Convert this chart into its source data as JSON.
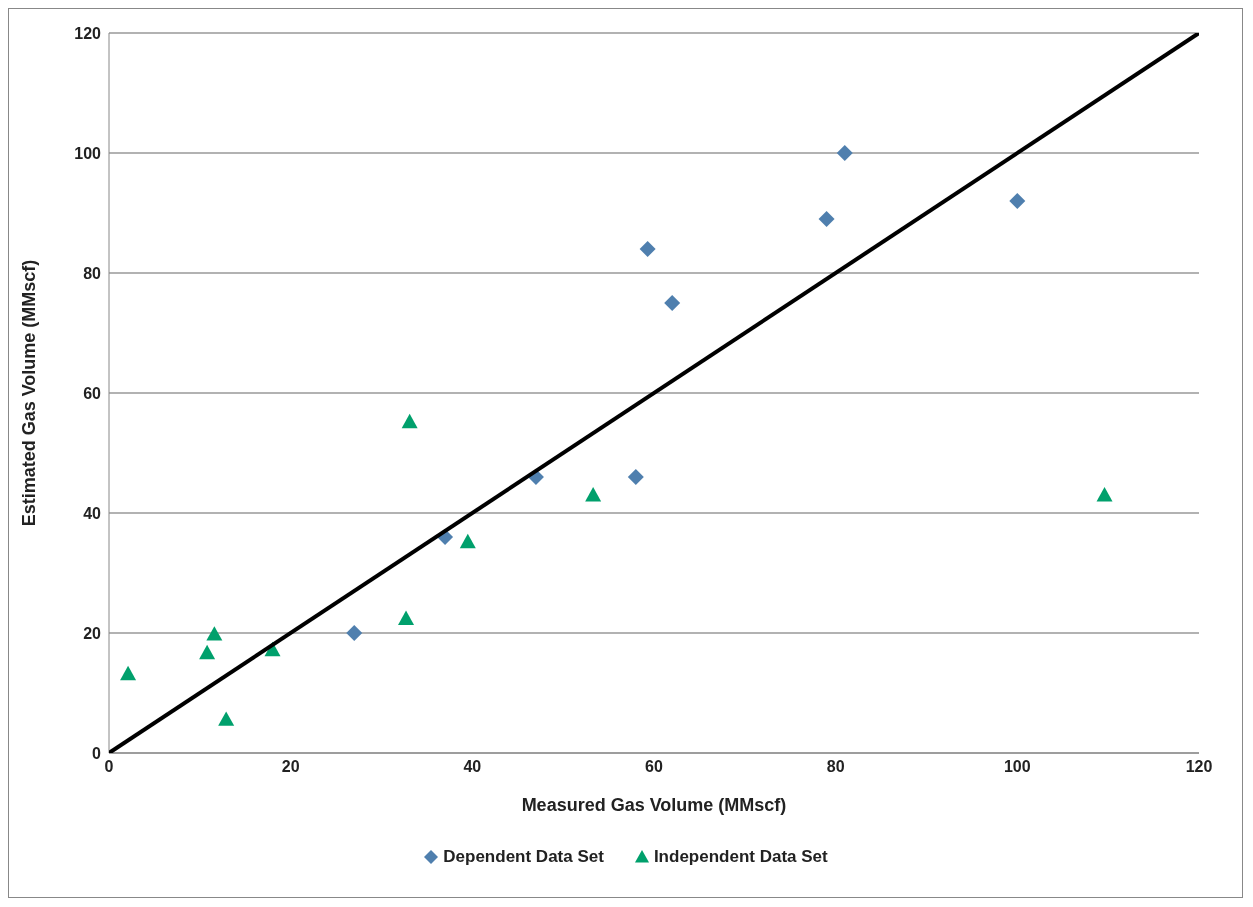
{
  "chart_data": {
    "type": "scatter",
    "xlabel": "Measured Gas Volume (MMscf)",
    "ylabel": "Estimated Gas Volume (MMscf)",
    "xlim": [
      0,
      120
    ],
    "xticks": [
      0,
      20,
      40,
      60,
      80,
      100,
      120
    ],
    "ylim": [
      0,
      120
    ],
    "yticks": [
      0,
      20,
      40,
      60,
      80,
      100,
      120
    ],
    "grid": "y",
    "legend": "bottom",
    "series": [
      {
        "name": "Dependent Data Set",
        "color": "#4f7fae",
        "marker": "diamond",
        "x": [
          27,
          37,
          47,
          58,
          59.3,
          62,
          79,
          81,
          100
        ],
        "values": [
          20,
          36,
          46,
          46,
          84,
          75,
          89,
          100,
          92
        ]
      },
      {
        "name": "Independent Data Set",
        "color": "#00a06c",
        "marker": "triangle",
        "x": [
          2.1,
          10.8,
          11.6,
          12.9,
          18,
          32.7,
          33.1,
          39.5,
          53.3,
          109.6
        ],
        "values": [
          13.2,
          16.7,
          19.8,
          5.6,
          17.2,
          22.4,
          55.2,
          35.2,
          43,
          43
        ]
      },
      {
        "type": "line",
        "color": "#000000",
        "marker": "none",
        "x": [
          0,
          120
        ],
        "values": [
          0,
          120
        ]
      }
    ]
  }
}
